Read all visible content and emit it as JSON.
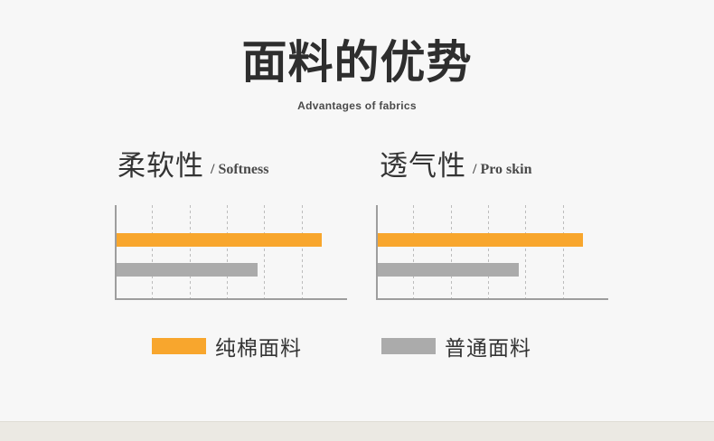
{
  "header": {
    "title": "面料的优势",
    "subtitle": "Advantages of fabrics"
  },
  "sections": [
    {
      "heading_cn": "柔软性",
      "heading_en": "/ Softness"
    },
    {
      "heading_cn": "透气性",
      "heading_en": "/ Pro skin"
    }
  ],
  "legend": [
    {
      "label": "纯棉面料",
      "color": "#F8A62D"
    },
    {
      "label": "普通面料",
      "color": "#ABABAB"
    }
  ],
  "palette": {
    "background": "#F7F7F7",
    "title_text": "#2E2E2E",
    "axis": "#9E9E9E",
    "gridline": "#BDBDBD",
    "cotton_orange": "#F8A62D",
    "ordinary_gray": "#ABABAB",
    "footer_strip": "#EBE9E3"
  },
  "chart_data": [
    {
      "type": "bar",
      "orientation": "horizontal",
      "title": "柔软性 / Softness",
      "categories": [
        "纯棉面料",
        "普通面料"
      ],
      "values": [
        89,
        61
      ],
      "xlim": [
        0,
        100
      ],
      "xlabel": "",
      "ylabel": "",
      "grid": "dashed-vertical",
      "gridlines_pct": [
        15.3,
        31.6,
        47.8,
        64.1,
        80.4
      ],
      "bar_colors": [
        "#F8A62D",
        "#ABABAB"
      ],
      "legend_position": "below",
      "tick_labels": []
    },
    {
      "type": "bar",
      "orientation": "horizontal",
      "title": "透气性 / Pro skin",
      "categories": [
        "纯棉面料",
        "普通面料"
      ],
      "values": [
        89,
        61
      ],
      "xlim": [
        0,
        100
      ],
      "xlabel": "",
      "ylabel": "",
      "grid": "dashed-vertical",
      "gridlines_pct": [
        15.3,
        31.6,
        47.8,
        64.1,
        80.4
      ],
      "bar_colors": [
        "#F8A62D",
        "#ABABAB"
      ],
      "legend_position": "below",
      "tick_labels": []
    }
  ]
}
